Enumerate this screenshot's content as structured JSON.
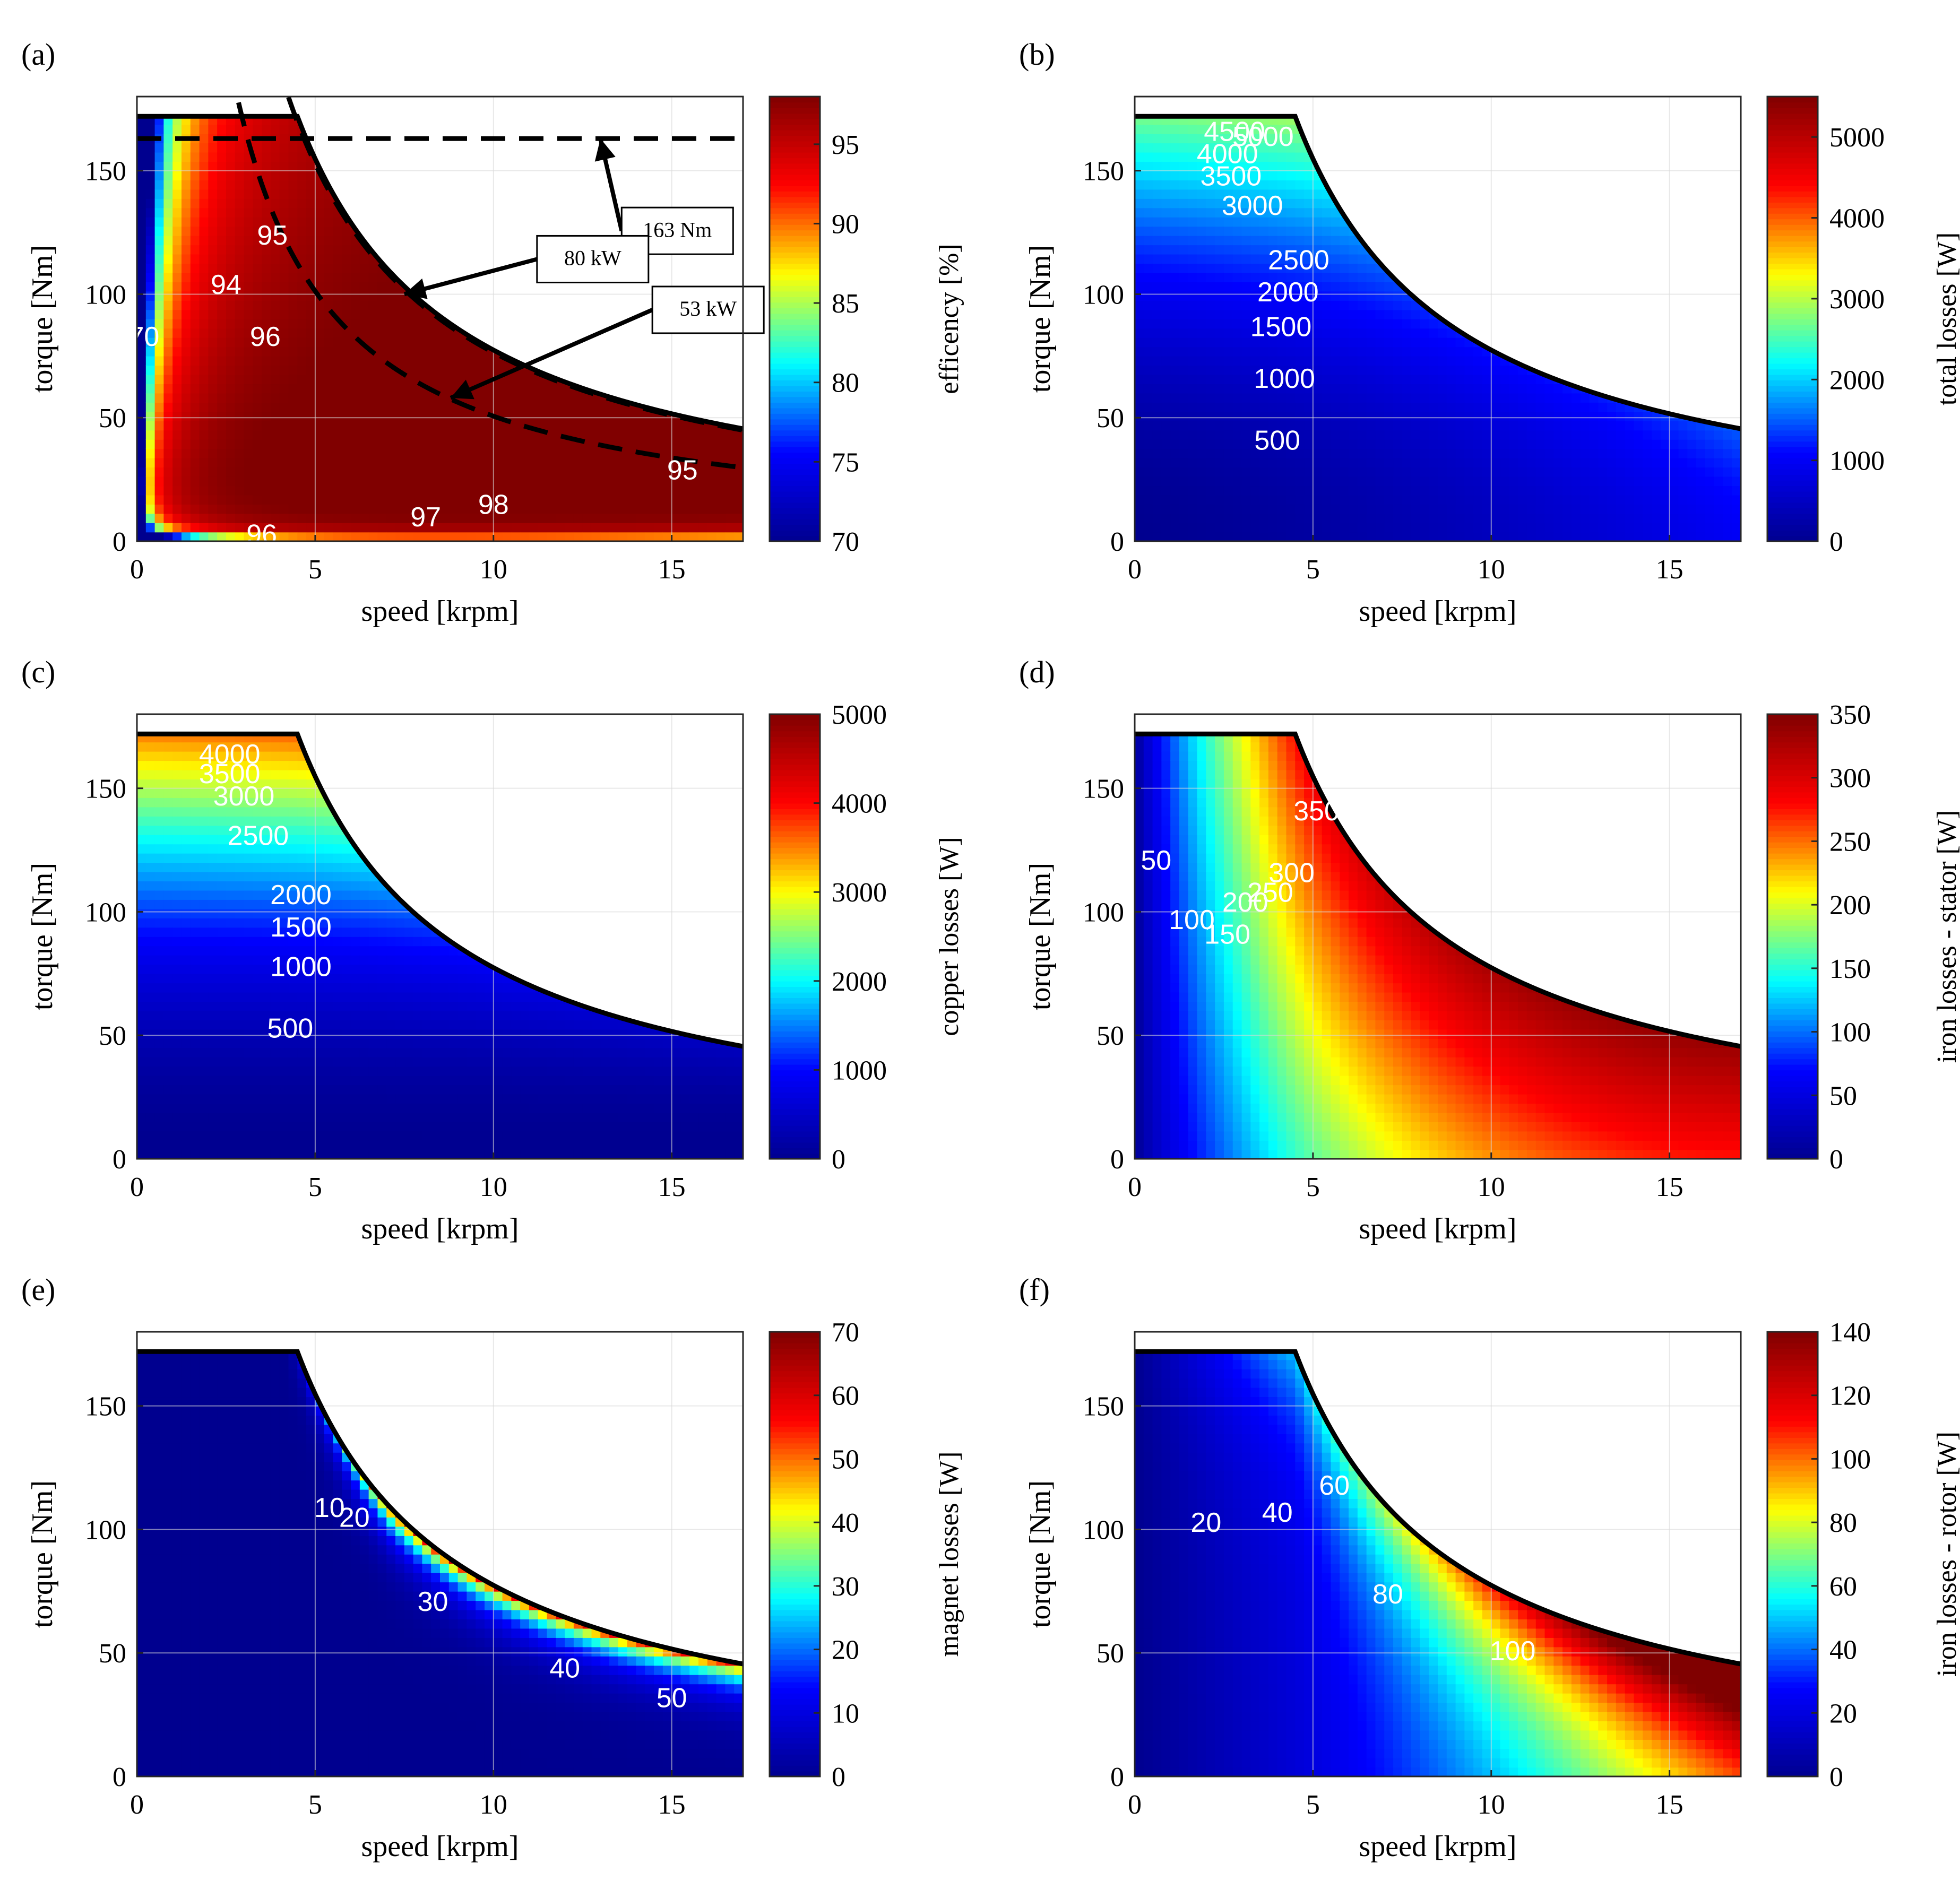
{
  "chart_data": [
    {
      "panel": "(a)",
      "type": "heatmap",
      "xlabel": "speed [krpm]",
      "ylabel": "torque [Nm]",
      "xlim": [
        0,
        17
      ],
      "ylim": [
        0,
        180
      ],
      "x_ticks": [
        0,
        5,
        10,
        15
      ],
      "y_ticks": [
        0,
        50,
        100,
        150
      ],
      "grid": true,
      "colorbar": {
        "label": "efficency [%]",
        "range": [
          70,
          98
        ],
        "ticks": [
          70,
          75,
          80,
          85,
          90,
          95
        ]
      },
      "contour_levels": [
        70,
        94,
        95,
        96,
        97,
        98
      ],
      "contour_labels": [
        {
          "text": "70",
          "x": 0.2,
          "y": 82
        },
        {
          "text": "94",
          "x": 2.5,
          "y": 103
        },
        {
          "text": "95",
          "x": 3.8,
          "y": 123
        },
        {
          "text": "96",
          "x": 3.6,
          "y": 82
        },
        {
          "text": "97",
          "x": 8.1,
          "y": 9
        },
        {
          "text": "98",
          "x": 10.0,
          "y": 14
        },
        {
          "text": "95",
          "x": 15.3,
          "y": 28
        },
        {
          "text": "96",
          "x": 3.5,
          "y": 2
        }
      ],
      "annotations": [
        {
          "text": "163 Nm",
          "target": [
            13.0,
            163
          ]
        },
        {
          "text": "80 kW",
          "target": [
            7.5,
            100
          ]
        },
        {
          "text": "53 kW",
          "target": [
            8.8,
            58
          ]
        }
      ],
      "reference_lines": [
        {
          "kind": "constant torque",
          "torque": 163
        },
        {
          "kind": "constant power",
          "power_kW": 80
        },
        {
          "kind": "constant power",
          "power_kW": 53
        }
      ],
      "torque_envelope": {
        "max_torque": 172,
        "base_speed": 4.5,
        "torque_at_17krpm": 29
      }
    },
    {
      "panel": "(b)",
      "type": "heatmap",
      "xlabel": "speed [krpm]",
      "ylabel": "torque [Nm]",
      "xlim": [
        0,
        17
      ],
      "ylim": [
        0,
        180
      ],
      "x_ticks": [
        0,
        5,
        10,
        15
      ],
      "y_ticks": [
        0,
        50,
        100,
        150
      ],
      "grid": true,
      "colorbar": {
        "label": "total losses [W]",
        "range": [
          0,
          5500
        ],
        "ticks": [
          0,
          1000,
          2000,
          3000,
          4000,
          5000
        ]
      },
      "contour_levels": [
        500,
        1000,
        1500,
        2000,
        2500,
        3000,
        3500,
        4000,
        4500,
        5000
      ],
      "contour_labels": [
        {
          "text": "500",
          "x": 4.0,
          "y": 40
        },
        {
          "text": "1000",
          "x": 4.2,
          "y": 65
        },
        {
          "text": "1500",
          "x": 4.1,
          "y": 86
        },
        {
          "text": "2000",
          "x": 4.3,
          "y": 100
        },
        {
          "text": "2500",
          "x": 4.6,
          "y": 113
        },
        {
          "text": "3000",
          "x": 3.3,
          "y": 135
        },
        {
          "text": "3500",
          "x": 2.7,
          "y": 147
        },
        {
          "text": "4000",
          "x": 2.6,
          "y": 156
        },
        {
          "text": "4500",
          "x": 2.8,
          "y": 165
        },
        {
          "text": "5000",
          "x": 3.6,
          "y": 163
        }
      ],
      "torque_envelope": {
        "max_torque": 172,
        "base_speed": 4.5,
        "torque_at_17krpm": 29
      }
    },
    {
      "panel": "(c)",
      "type": "heatmap",
      "xlabel": "speed [krpm]",
      "ylabel": "torque [Nm]",
      "xlim": [
        0,
        17
      ],
      "ylim": [
        0,
        180
      ],
      "x_ticks": [
        0,
        5,
        10,
        15
      ],
      "y_ticks": [
        0,
        50,
        100,
        150
      ],
      "grid": true,
      "colorbar": {
        "label": "copper losses [W]",
        "range": [
          0,
          5000
        ],
        "ticks": [
          0,
          1000,
          2000,
          3000,
          4000,
          5000
        ]
      },
      "contour_levels": [
        500,
        1000,
        1500,
        2000,
        2500,
        3000,
        3500,
        4000
      ],
      "contour_labels": [
        {
          "text": "500",
          "x": 4.3,
          "y": 52
        },
        {
          "text": "1000",
          "x": 4.6,
          "y": 77
        },
        {
          "text": "1500",
          "x": 4.6,
          "y": 93
        },
        {
          "text": "2000",
          "x": 4.6,
          "y": 106
        },
        {
          "text": "2500",
          "x": 3.4,
          "y": 130
        },
        {
          "text": "3000",
          "x": 3.0,
          "y": 146
        },
        {
          "text": "3500",
          "x": 2.6,
          "y": 155
        },
        {
          "text": "4000",
          "x": 2.6,
          "y": 163
        }
      ],
      "torque_envelope": {
        "max_torque": 172,
        "base_speed": 4.5,
        "torque_at_17krpm": 29
      }
    },
    {
      "panel": "(d)",
      "type": "heatmap",
      "xlabel": "speed [krpm]",
      "ylabel": "torque [Nm]",
      "xlim": [
        0,
        17
      ],
      "ylim": [
        0,
        180
      ],
      "x_ticks": [
        0,
        5,
        10,
        15
      ],
      "y_ticks": [
        0,
        50,
        100,
        150
      ],
      "grid": true,
      "colorbar": {
        "label": "iron losses - stator [W]",
        "range": [
          0,
          350
        ],
        "ticks": [
          0,
          50,
          100,
          150,
          200,
          250,
          300,
          350
        ]
      },
      "contour_levels": [
        50,
        100,
        150,
        200,
        250,
        300,
        350
      ],
      "contour_labels": [
        {
          "text": "50",
          "x": 0.6,
          "y": 120
        },
        {
          "text": "100",
          "x": 1.6,
          "y": 96
        },
        {
          "text": "150",
          "x": 2.6,
          "y": 90
        },
        {
          "text": "200",
          "x": 3.1,
          "y": 103
        },
        {
          "text": "250",
          "x": 3.8,
          "y": 107
        },
        {
          "text": "300",
          "x": 4.4,
          "y": 115
        },
        {
          "text": "350",
          "x": 5.1,
          "y": 140
        }
      ],
      "torque_envelope": {
        "max_torque": 172,
        "base_speed": 4.5,
        "torque_at_17krpm": 29
      }
    },
    {
      "panel": "(e)",
      "type": "heatmap",
      "xlabel": "speed [krpm]",
      "ylabel": "torque [Nm]",
      "xlim": [
        0,
        17
      ],
      "ylim": [
        0,
        180
      ],
      "x_ticks": [
        0,
        5,
        10,
        15
      ],
      "y_ticks": [
        0,
        50,
        100,
        150
      ],
      "grid": true,
      "colorbar": {
        "label": "magnet losses [W]",
        "range": [
          0,
          70
        ],
        "ticks": [
          0,
          10,
          20,
          30,
          40,
          50,
          60,
          70
        ]
      },
      "contour_levels": [
        10,
        20,
        30,
        40,
        50
      ],
      "contour_labels": [
        {
          "text": "10",
          "x": 5.4,
          "y": 108
        },
        {
          "text": "20",
          "x": 6.1,
          "y": 104
        },
        {
          "text": "30",
          "x": 8.3,
          "y": 70
        },
        {
          "text": "40",
          "x": 12.0,
          "y": 43
        },
        {
          "text": "50",
          "x": 15.0,
          "y": 31
        }
      ],
      "torque_envelope": {
        "max_torque": 172,
        "base_speed": 4.5,
        "torque_at_17krpm": 29
      }
    },
    {
      "panel": "(f)",
      "type": "heatmap",
      "xlabel": "speed [krpm]",
      "ylabel": "torque [Nm]",
      "xlim": [
        0,
        17
      ],
      "ylim": [
        0,
        180
      ],
      "x_ticks": [
        0,
        5,
        10,
        15
      ],
      "y_ticks": [
        0,
        50,
        100,
        150
      ],
      "grid": true,
      "colorbar": {
        "label": "iron losses - rotor [W]",
        "range": [
          0,
          140
        ],
        "ticks": [
          0,
          20,
          40,
          60,
          80,
          100,
          120,
          140
        ]
      },
      "contour_levels": [
        20,
        40,
        60,
        80,
        100
      ],
      "contour_labels": [
        {
          "text": "20",
          "x": 2.0,
          "y": 102
        },
        {
          "text": "40",
          "x": 4.0,
          "y": 106
        },
        {
          "text": "60",
          "x": 5.6,
          "y": 117
        },
        {
          "text": "80",
          "x": 7.1,
          "y": 73
        },
        {
          "text": "100",
          "x": 10.6,
          "y": 50
        }
      ],
      "torque_envelope": {
        "max_torque": 172,
        "base_speed": 4.5,
        "torque_at_17krpm": 29
      }
    }
  ],
  "colors": {
    "colormap": [
      "#00008f",
      "#0000ff",
      "#00ffff",
      "#ffff00",
      "#ff0000",
      "#800000"
    ],
    "contour_line": "#ffffff",
    "envelope": "#000000",
    "grid": "#d9d9d9"
  }
}
